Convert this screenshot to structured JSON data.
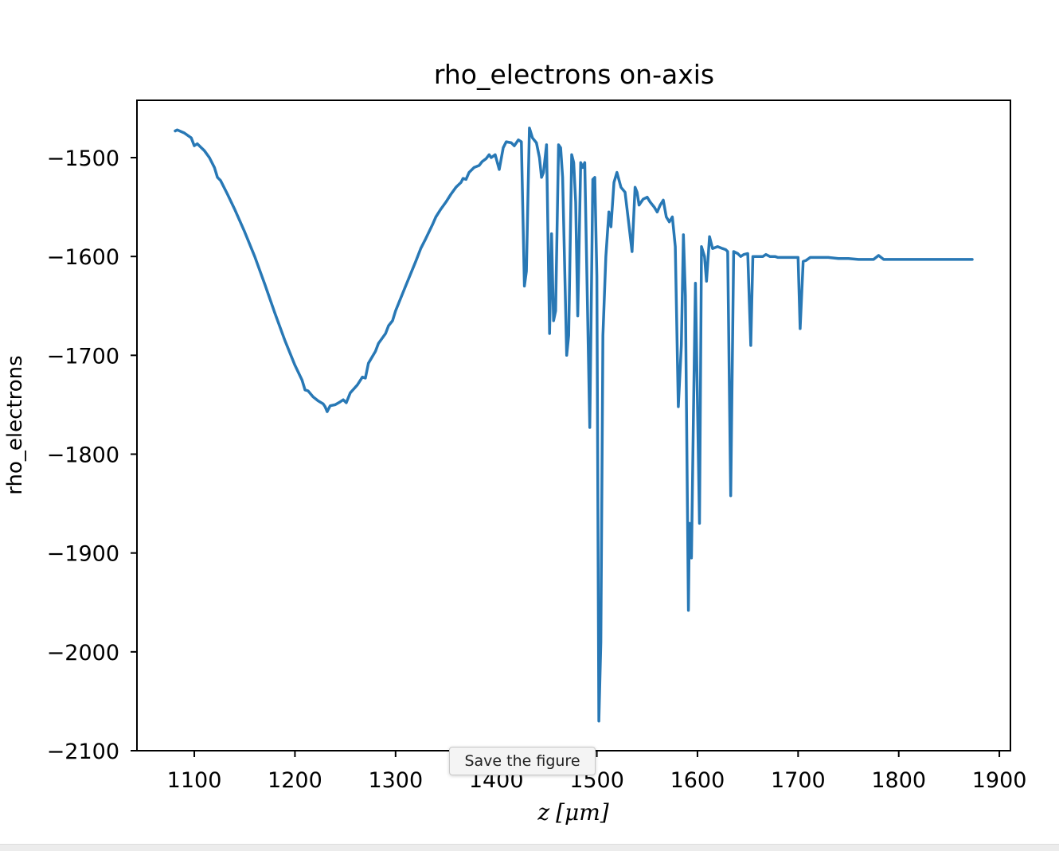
{
  "tooltip": {
    "text": "Save the figure"
  },
  "colors": {
    "line": "#2878b5",
    "axes": "#000000",
    "background": "#ffffff"
  },
  "chart_data": {
    "type": "line",
    "title": "rho_electrons on-axis",
    "xlabel": "z [μm]",
    "xlabel_parts": {
      "var": "z",
      "unit": "[μm]"
    },
    "ylabel": "rho_electrons",
    "xlim": [
      1043,
      1911
    ],
    "ylim": [
      -2100,
      -1442
    ],
    "xticks": [
      1100,
      1200,
      1300,
      1400,
      1500,
      1600,
      1700,
      1800,
      1900
    ],
    "yticks": [
      -1500,
      -1600,
      -1700,
      -1800,
      -1900,
      -2000,
      -2100
    ],
    "grid": false,
    "legend": "none",
    "series": [
      {
        "points": [
          [
            1081,
            -1473
          ],
          [
            1083,
            -1472
          ],
          [
            1090,
            -1475
          ],
          [
            1097,
            -1480
          ],
          [
            1100,
            -1488
          ],
          [
            1103,
            -1486
          ],
          [
            1110,
            -1493
          ],
          [
            1115,
            -1500
          ],
          [
            1120,
            -1510
          ],
          [
            1123,
            -1520
          ],
          [
            1126,
            -1523
          ],
          [
            1133,
            -1537
          ],
          [
            1140,
            -1552
          ],
          [
            1150,
            -1575
          ],
          [
            1160,
            -1600
          ],
          [
            1170,
            -1628
          ],
          [
            1180,
            -1657
          ],
          [
            1190,
            -1685
          ],
          [
            1200,
            -1710
          ],
          [
            1207,
            -1725
          ],
          [
            1210,
            -1735
          ],
          [
            1213,
            -1736
          ],
          [
            1218,
            -1742
          ],
          [
            1223,
            -1746
          ],
          [
            1228,
            -1749
          ],
          [
            1230,
            -1752
          ],
          [
            1232,
            -1757
          ],
          [
            1235,
            -1751
          ],
          [
            1240,
            -1750
          ],
          [
            1245,
            -1747
          ],
          [
            1248,
            -1745
          ],
          [
            1251,
            -1748
          ],
          [
            1255,
            -1738
          ],
          [
            1262,
            -1730
          ],
          [
            1267,
            -1722
          ],
          [
            1270,
            -1723
          ],
          [
            1273,
            -1708
          ],
          [
            1280,
            -1696
          ],
          [
            1283,
            -1688
          ],
          [
            1290,
            -1678
          ],
          [
            1293,
            -1670
          ],
          [
            1297,
            -1665
          ],
          [
            1300,
            -1655
          ],
          [
            1310,
            -1630
          ],
          [
            1320,
            -1605
          ],
          [
            1325,
            -1592
          ],
          [
            1330,
            -1582
          ],
          [
            1337,
            -1567
          ],
          [
            1340,
            -1560
          ],
          [
            1345,
            -1552
          ],
          [
            1350,
            -1545
          ],
          [
            1355,
            -1537
          ],
          [
            1360,
            -1530
          ],
          [
            1365,
            -1525
          ],
          [
            1367,
            -1521
          ],
          [
            1370,
            -1522
          ],
          [
            1373,
            -1515
          ],
          [
            1378,
            -1510
          ],
          [
            1383,
            -1508
          ],
          [
            1386,
            -1504
          ],
          [
            1390,
            -1501
          ],
          [
            1393,
            -1497
          ],
          [
            1395,
            -1500
          ],
          [
            1399,
            -1497
          ],
          [
            1403,
            -1512
          ],
          [
            1407,
            -1490
          ],
          [
            1410,
            -1484
          ],
          [
            1415,
            -1485
          ],
          [
            1418,
            -1488
          ],
          [
            1422,
            -1482
          ],
          [
            1425,
            -1484
          ],
          [
            1428,
            -1630
          ],
          [
            1430,
            -1615
          ],
          [
            1433,
            -1470
          ],
          [
            1436,
            -1480
          ],
          [
            1440,
            -1485
          ],
          [
            1443,
            -1500
          ],
          [
            1445,
            -1520
          ],
          [
            1447,
            -1515
          ],
          [
            1450,
            -1487
          ],
          [
            1453,
            -1678
          ],
          [
            1455,
            -1577
          ],
          [
            1457,
            -1665
          ],
          [
            1459,
            -1655
          ],
          [
            1462,
            -1487
          ],
          [
            1464,
            -1490
          ],
          [
            1466,
            -1520
          ],
          [
            1470,
            -1700
          ],
          [
            1472,
            -1680
          ],
          [
            1475,
            -1497
          ],
          [
            1477,
            -1505
          ],
          [
            1479,
            -1545
          ],
          [
            1481,
            -1660
          ],
          [
            1484,
            -1505
          ],
          [
            1486,
            -1510
          ],
          [
            1488,
            -1505
          ],
          [
            1493,
            -1773
          ],
          [
            1496,
            -1522
          ],
          [
            1498,
            -1520
          ],
          [
            1500,
            -1620
          ],
          [
            1502,
            -2070
          ],
          [
            1504,
            -1990
          ],
          [
            1506,
            -1680
          ],
          [
            1509,
            -1600
          ],
          [
            1512,
            -1555
          ],
          [
            1514,
            -1570
          ],
          [
            1517,
            -1525
          ],
          [
            1520,
            -1515
          ],
          [
            1524,
            -1530
          ],
          [
            1528,
            -1535
          ],
          [
            1531,
            -1560
          ],
          [
            1535,
            -1595
          ],
          [
            1538,
            -1530
          ],
          [
            1540,
            -1535
          ],
          [
            1542,
            -1548
          ],
          [
            1546,
            -1542
          ],
          [
            1550,
            -1540
          ],
          [
            1553,
            -1545
          ],
          [
            1557,
            -1550
          ],
          [
            1560,
            -1555
          ],
          [
            1563,
            -1548
          ],
          [
            1566,
            -1543
          ],
          [
            1569,
            -1560
          ],
          [
            1572,
            -1565
          ],
          [
            1575,
            -1560
          ],
          [
            1578,
            -1590
          ],
          [
            1581,
            -1752
          ],
          [
            1584,
            -1690
          ],
          [
            1586,
            -1578
          ],
          [
            1588,
            -1640
          ],
          [
            1591,
            -1958
          ],
          [
            1592,
            -1870
          ],
          [
            1594,
            -1905
          ],
          [
            1596,
            -1760
          ],
          [
            1598,
            -1627
          ],
          [
            1602,
            -1870
          ],
          [
            1604,
            -1590
          ],
          [
            1607,
            -1600
          ],
          [
            1609,
            -1625
          ],
          [
            1612,
            -1580
          ],
          [
            1615,
            -1592
          ],
          [
            1620,
            -1590
          ],
          [
            1625,
            -1592
          ],
          [
            1628,
            -1593
          ],
          [
            1630,
            -1595
          ],
          [
            1633,
            -1842
          ],
          [
            1636,
            -1595
          ],
          [
            1640,
            -1597
          ],
          [
            1643,
            -1600
          ],
          [
            1646,
            -1598
          ],
          [
            1650,
            -1597
          ],
          [
            1653,
            -1690
          ],
          [
            1655,
            -1600
          ],
          [
            1660,
            -1600
          ],
          [
            1665,
            -1600
          ],
          [
            1668,
            -1598
          ],
          [
            1672,
            -1600
          ],
          [
            1677,
            -1600
          ],
          [
            1680,
            -1601
          ],
          [
            1685,
            -1601
          ],
          [
            1690,
            -1601
          ],
          [
            1695,
            -1601
          ],
          [
            1700,
            -1601
          ],
          [
            1702,
            -1673
          ],
          [
            1705,
            -1605
          ],
          [
            1708,
            -1604
          ],
          [
            1712,
            -1601
          ],
          [
            1720,
            -1601
          ],
          [
            1730,
            -1601
          ],
          [
            1740,
            -1602
          ],
          [
            1750,
            -1602
          ],
          [
            1760,
            -1603
          ],
          [
            1770,
            -1603
          ],
          [
            1775,
            -1603
          ],
          [
            1780,
            -1599
          ],
          [
            1785,
            -1603
          ],
          [
            1800,
            -1603
          ],
          [
            1820,
            -1603
          ],
          [
            1840,
            -1603
          ],
          [
            1860,
            -1603
          ],
          [
            1873,
            -1603
          ]
        ]
      }
    ]
  }
}
